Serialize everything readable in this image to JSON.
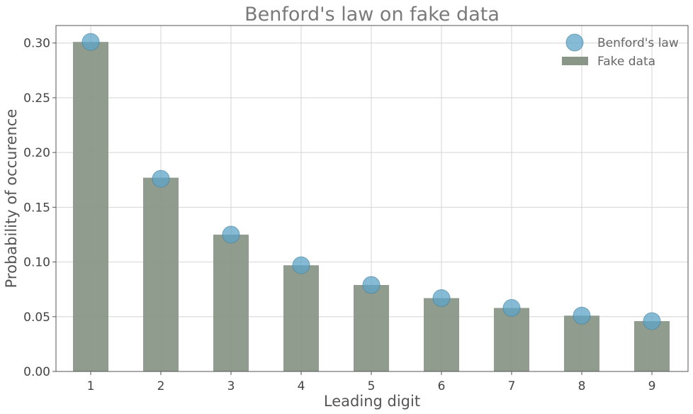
{
  "chart_data": {
    "type": "bar",
    "title": "Benford's law on fake data",
    "xlabel": "Leading digit",
    "ylabel": "Probability of occurence",
    "categories": [
      "1",
      "2",
      "3",
      "4",
      "5",
      "6",
      "7",
      "8",
      "9"
    ],
    "ylim": [
      0,
      0.316
    ],
    "yticks": [
      "0.00",
      "0.05",
      "0.10",
      "0.15",
      "0.20",
      "0.25",
      "0.30"
    ],
    "grid": true,
    "legend_position": "top-right",
    "series": [
      {
        "name": "Fake data",
        "type": "bar",
        "color": "#8a9788",
        "values": [
          0.301,
          0.177,
          0.125,
          0.097,
          0.079,
          0.067,
          0.058,
          0.051,
          0.046
        ]
      },
      {
        "name": "Benford's law",
        "type": "scatter",
        "color": "#5ea4c8",
        "values": [
          0.301,
          0.176,
          0.125,
          0.097,
          0.079,
          0.067,
          0.058,
          0.051,
          0.046
        ]
      }
    ]
  }
}
